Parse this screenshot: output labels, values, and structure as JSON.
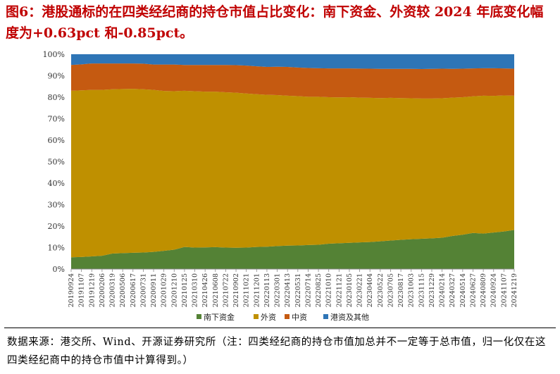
{
  "title": "图6：港股通标的在四类经纪商的持仓市值占比变化：南下资金、外资较 2024 年底变化幅度为+0.63pct 和-0.85pct。",
  "source_note": "数据来源：港交所、Wind、开源证券研究所（注：四类经纪商的持仓市值加总并不一定等于总市值，归一化仅在这四类经纪商中的持仓市值中计算得到。）",
  "chart_data": {
    "type": "area",
    "stacked": true,
    "normalized": true,
    "x_tick_labels": [
      "20190924",
      "20191107",
      "20191219",
      "20200206",
      "20200319",
      "20200506",
      "20200617",
      "20200731",
      "20200911",
      "20201029",
      "20201210",
      "20210125",
      "20210310",
      "20210426",
      "20210608",
      "20210722",
      "20210902",
      "20211021",
      "20211201",
      "20220113",
      "20220301",
      "20220413",
      "20220531",
      "20220714",
      "20220825",
      "20221010",
      "20221121",
      "20230105",
      "20230221",
      "20230404",
      "20230522",
      "20230705",
      "20230817",
      "20231003",
      "20231115",
      "20231229",
      "20240214",
      "20240327",
      "20240514",
      "20240627",
      "20240809",
      "20240924",
      "20241107",
      "20241219"
    ],
    "y_tick_labels": [
      "0%",
      "10%",
      "20%",
      "30%",
      "40%",
      "50%",
      "60%",
      "70%",
      "80%",
      "90%",
      "100%"
    ],
    "ylim": [
      0,
      100
    ],
    "grid": false,
    "legend_position": "bottom",
    "series": [
      {
        "name": "南下资金",
        "color": "#548235",
        "values": [
          5.5,
          5.6,
          5.9,
          6.2,
          7.2,
          7.4,
          7.6,
          7.7,
          8.0,
          8.5,
          9.0,
          10.3,
          10.0,
          10.1,
          10.2,
          10.0,
          9.9,
          10.0,
          10.3,
          10.4,
          10.7,
          10.9,
          11.0,
          11.2,
          11.3,
          11.8,
          12.0,
          12.2,
          12.4,
          12.6,
          12.9,
          13.3,
          13.6,
          13.9,
          14.1,
          14.3,
          14.6,
          15.4,
          16.0,
          16.8,
          16.5,
          17.0,
          17.5,
          18.2
        ]
      },
      {
        "name": "外资",
        "color": "#bf9000",
        "values": [
          77.5,
          77.6,
          77.5,
          77.2,
          76.5,
          76.4,
          76.3,
          76.0,
          75.4,
          74.4,
          73.8,
          72.7,
          72.8,
          72.5,
          72.4,
          72.3,
          72.2,
          71.7,
          71.1,
          70.7,
          70.3,
          69.8,
          69.5,
          69.0,
          68.9,
          68.2,
          67.9,
          67.8,
          67.4,
          67.1,
          66.7,
          66.4,
          66.0,
          65.6,
          65.3,
          65.1,
          64.9,
          64.4,
          64.0,
          63.6,
          64.2,
          63.6,
          63.3,
          62.5
        ]
      },
      {
        "name": "中资",
        "color": "#c55a11",
        "values": [
          12.0,
          12.1,
          12.3,
          12.3,
          12.0,
          11.9,
          11.8,
          11.9,
          11.8,
          12.3,
          12.4,
          12.0,
          12.2,
          12.4,
          12.4,
          12.7,
          12.8,
          13.0,
          13.0,
          13.0,
          13.2,
          13.4,
          13.3,
          13.4,
          13.3,
          13.4,
          13.5,
          13.4,
          13.5,
          13.6,
          13.6,
          13.5,
          13.6,
          13.7,
          13.7,
          13.8,
          13.8,
          13.4,
          13.3,
          13.0,
          12.8,
          12.9,
          12.6,
          12.6
        ]
      },
      {
        "name": "港资及其他",
        "color": "#2e75b6",
        "values": [
          5.0,
          4.7,
          4.3,
          4.3,
          4.3,
          4.3,
          4.3,
          4.4,
          4.8,
          4.8,
          4.8,
          5.0,
          5.0,
          5.0,
          5.0,
          5.0,
          5.1,
          5.3,
          5.6,
          5.9,
          5.8,
          5.9,
          6.2,
          6.4,
          6.5,
          6.6,
          6.6,
          6.6,
          6.7,
          6.7,
          6.8,
          6.8,
          6.8,
          6.8,
          6.9,
          6.8,
          6.7,
          6.8,
          6.7,
          6.6,
          6.5,
          6.5,
          6.6,
          6.7
        ]
      }
    ]
  }
}
